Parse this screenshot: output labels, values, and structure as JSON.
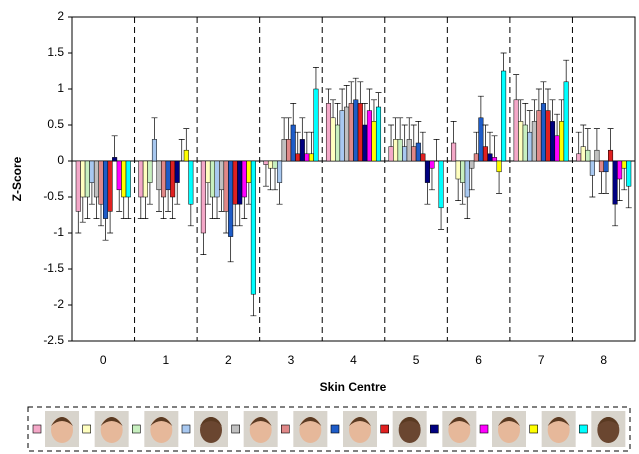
{
  "chart_data": {
    "type": "bar",
    "x_label": "Skin Centre",
    "y_label": "Z-Score",
    "categories": [
      "0",
      "1",
      "2",
      "3",
      "4",
      "5",
      "6",
      "7",
      "8"
    ],
    "ylim": [
      -2.5,
      2
    ],
    "yticks": [
      2,
      1.5,
      1,
      0.5,
      0,
      -0.5,
      -1,
      -1.5,
      -2,
      -2.5
    ],
    "series": [
      {
        "color": "#f4a8c8",
        "values": [
          -0.7,
          -0.5,
          -1.0,
          -0.05,
          0.8,
          0.2,
          0.25,
          0.85,
          0.1
        ],
        "errors": [
          0.3,
          0.3,
          0.3,
          0.3,
          0.2,
          0.3,
          0.3,
          0.35,
          0.3
        ]
      },
      {
        "color": "#ffffc0",
        "values": [
          -0.5,
          -0.5,
          -0.3,
          -0.1,
          0.6,
          0.3,
          -0.25,
          0.55,
          0.2
        ],
        "errors": [
          0.35,
          0.3,
          0.3,
          0.3,
          0.25,
          0.3,
          0.3,
          0.3,
          0.3
        ]
      },
      {
        "color": "#c8f0c0",
        "values": [
          -0.5,
          -0.3,
          -0.5,
          -0.1,
          0.5,
          0.3,
          -0.3,
          0.5,
          0.15
        ],
        "errors": [
          0.3,
          0.3,
          0.3,
          0.3,
          0.3,
          0.3,
          0.3,
          0.3,
          0.3
        ]
      },
      {
        "color": "#a8c8f0",
        "values": [
          -0.3,
          0.3,
          -0.5,
          -0.3,
          0.7,
          0.2,
          -0.5,
          0.4,
          -0.2
        ],
        "errors": [
          0.3,
          0.3,
          0.3,
          0.3,
          0.3,
          0.3,
          0.3,
          0.3,
          0.3
        ]
      },
      {
        "color": "#c0c0c0",
        "values": [
          -0.5,
          -0.4,
          -0.4,
          0.3,
          0.75,
          0.3,
          -0.1,
          0.55,
          0.15
        ],
        "errors": [
          0.3,
          0.3,
          0.3,
          0.3,
          0.3,
          0.3,
          0.3,
          0.3,
          0.3
        ]
      },
      {
        "color": "#e08888",
        "values": [
          -0.6,
          -0.5,
          -0.7,
          0.3,
          0.8,
          0.2,
          0.1,
          0.7,
          -0.15
        ],
        "errors": [
          0.3,
          0.3,
          0.3,
          0.3,
          0.3,
          0.3,
          0.3,
          0.3,
          0.3
        ]
      },
      {
        "color": "#1e5cc8",
        "values": [
          -0.8,
          -0.4,
          -1.05,
          0.5,
          0.85,
          0.25,
          0.6,
          0.8,
          -0.15
        ],
        "errors": [
          0.3,
          0.3,
          0.35,
          0.3,
          0.3,
          0.3,
          0.3,
          0.3,
          0.3
        ]
      },
      {
        "color": "#e02020",
        "values": [
          -0.7,
          -0.5,
          -0.6,
          0.1,
          0.8,
          0.1,
          0.2,
          0.7,
          0.15
        ],
        "errors": [
          0.3,
          0.3,
          0.3,
          0.3,
          0.3,
          0.3,
          0.3,
          0.3,
          0.3
        ]
      },
      {
        "color": "#000080",
        "values": [
          0.05,
          -0.3,
          -0.6,
          0.3,
          0.5,
          -0.3,
          0.1,
          0.55,
          -0.6
        ],
        "errors": [
          0.3,
          0.3,
          0.3,
          0.3,
          0.3,
          0.3,
          0.3,
          0.3,
          0.3
        ]
      },
      {
        "color": "#ff00ff",
        "values": [
          -0.4,
          0.0,
          -0.5,
          0.1,
          0.7,
          -0.1,
          0.05,
          0.35,
          -0.25
        ],
        "errors": [
          0.3,
          0.3,
          0.3,
          0.3,
          0.3,
          0.3,
          0.3,
          0.3,
          0.3
        ]
      },
      {
        "color": "#ffff00",
        "values": [
          -0.5,
          0.15,
          -0.3,
          0.1,
          0.55,
          0.0,
          -0.15,
          0.55,
          -0.1
        ],
        "errors": [
          0.3,
          0.3,
          0.3,
          0.3,
          0.3,
          0.3,
          0.3,
          0.3,
          0.3
        ]
      },
      {
        "color": "#00ffff",
        "values": [
          -0.5,
          -0.6,
          -1.85,
          1.0,
          0.75,
          -0.65,
          1.25,
          1.1,
          -0.35
        ],
        "errors": [
          0.3,
          0.3,
          0.3,
          0.3,
          0.2,
          0.3,
          0.25,
          0.3,
          0.3
        ]
      }
    ]
  }
}
